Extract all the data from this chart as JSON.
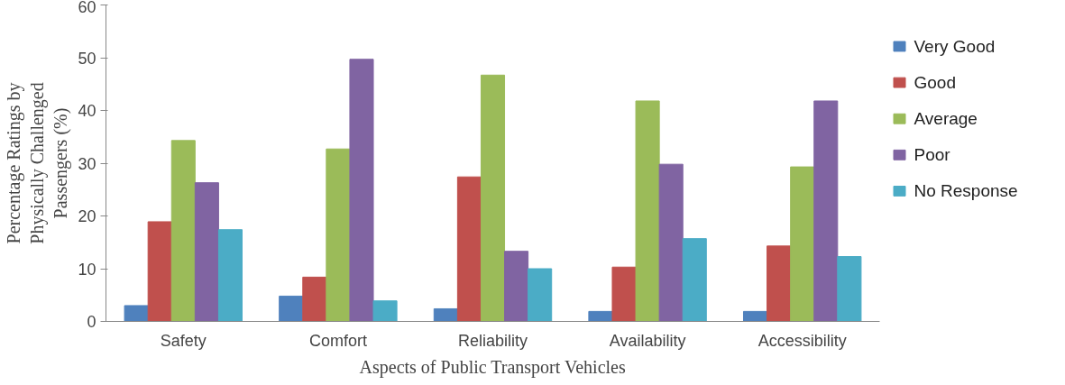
{
  "chart_data": {
    "type": "bar",
    "xlabel": "Aspects of Public Transport Vehicles",
    "ylabel": "Percentage Ratings by\nPhysically Challenged\nPassengers (%)",
    "categories": [
      "Safety",
      "Comfort",
      "Reliability",
      "Availability",
      "Accessibility"
    ],
    "series": [
      {
        "name": "Very Good",
        "color": "#4f81bd",
        "values": [
          3,
          4.8,
          2.4,
          1.9,
          1.9
        ]
      },
      {
        "name": "Good",
        "color": "#c0504d",
        "values": [
          18.9,
          8.4,
          27.4,
          10.3,
          14.3
        ]
      },
      {
        "name": "Average",
        "color": "#9bbb59",
        "values": [
          34.3,
          32.7,
          46.7,
          41.8,
          29.3
        ]
      },
      {
        "name": "Poor",
        "color": "#8064a2",
        "values": [
          26.3,
          49.7,
          13.3,
          29.8,
          41.8
        ]
      },
      {
        "name": "No Response",
        "color": "#4bacc6",
        "values": [
          17.4,
          3.9,
          10,
          15.7,
          12.3
        ]
      }
    ],
    "ylim": [
      0,
      60
    ],
    "yticks": [
      0,
      10,
      20,
      30,
      40,
      50,
      60
    ],
    "grid": false,
    "legend": "right"
  }
}
